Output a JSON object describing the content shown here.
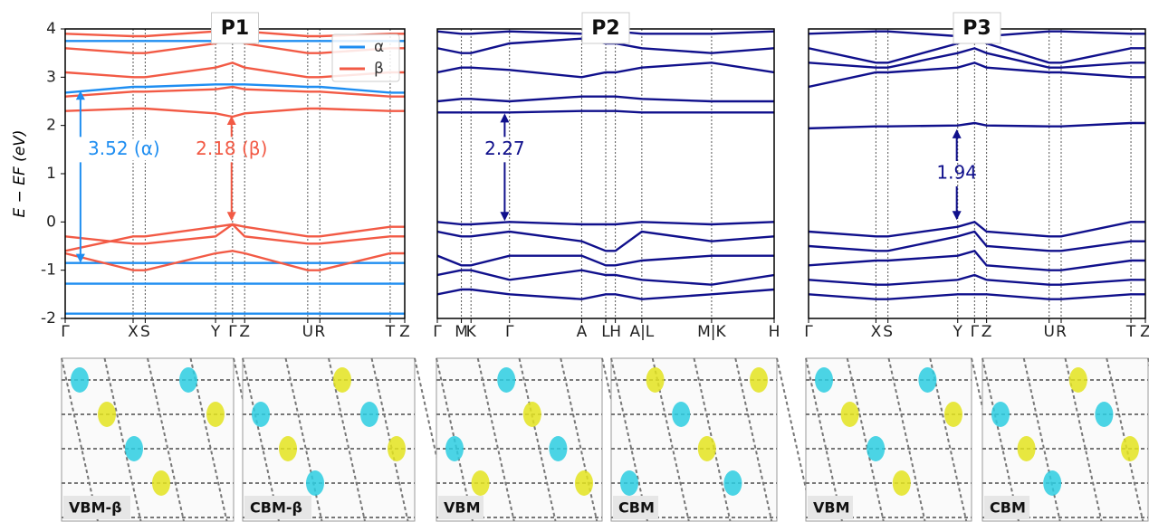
{
  "chart_data": [
    {
      "type": "line",
      "title": "P1",
      "ylabel": "E − EF (eV)",
      "xlim": [
        0,
        1.4
      ],
      "ylim": [
        -2,
        4
      ],
      "yticks": [
        -2,
        -1,
        0,
        1,
        2,
        3,
        4
      ],
      "xticks": [
        {
          "value": 0,
          "label": "Γ"
        },
        {
          "value": 0.28,
          "label": "X"
        },
        {
          "value": 0.33,
          "label": "S"
        },
        {
          "value": 0.62,
          "label": "Y"
        },
        {
          "value": 0.69,
          "label": "Γ"
        },
        {
          "value": 0.74,
          "label": "Z"
        },
        {
          "value": 1.0,
          "label": "U"
        },
        {
          "value": 1.05,
          "label": "R"
        },
        {
          "value": 1.34,
          "label": "T"
        },
        {
          "value": 1.4,
          "label": "Z"
        }
      ],
      "x": [
        0,
        0.28,
        0.33,
        0.62,
        0.69,
        0.74,
        1.0,
        1.05,
        1.34,
        1.4
      ],
      "legend": "upper right",
      "series": [
        {
          "name": "α",
          "color": "#1f8ef1",
          "bands": [
            [
              -0.85,
              -0.85,
              -0.85,
              -0.85,
              -0.85,
              -0.85,
              -0.85,
              -0.85,
              -0.85,
              -0.85
            ],
            [
              -1.28,
              -1.28,
              -1.28,
              -1.28,
              -1.28,
              -1.28,
              -1.28,
              -1.28,
              -1.28,
              -1.28
            ],
            [
              -1.9,
              -1.9,
              -1.9,
              -1.9,
              -1.9,
              -1.9,
              -1.9,
              -1.9,
              -1.9,
              -1.9
            ],
            [
              2.68,
              2.8,
              2.8,
              2.85,
              2.85,
              2.85,
              2.8,
              2.8,
              2.68,
              2.68
            ],
            [
              3.75,
              3.75,
              3.75,
              3.75,
              3.75,
              3.75,
              3.75,
              3.75,
              3.75,
              3.75
            ]
          ]
        },
        {
          "name": "β",
          "color": "#f25a45",
          "bands": [
            [
              -0.6,
              -0.3,
              -0.3,
              -0.1,
              -0.05,
              -0.1,
              -0.3,
              -0.3,
              -0.1,
              -0.1
            ],
            [
              -0.3,
              -0.45,
              -0.45,
              -0.3,
              -0.05,
              -0.3,
              -0.45,
              -0.45,
              -0.3,
              -0.3
            ],
            [
              -0.65,
              -1.0,
              -1.0,
              -0.65,
              -0.6,
              -0.65,
              -1.0,
              -1.0,
              -0.65,
              -0.65
            ],
            [
              2.3,
              2.35,
              2.35,
              2.25,
              2.18,
              2.25,
              2.35,
              2.35,
              2.3,
              2.3
            ],
            [
              2.6,
              2.7,
              2.7,
              2.75,
              2.8,
              2.75,
              2.7,
              2.7,
              2.6,
              2.6
            ],
            [
              3.1,
              3.0,
              3.0,
              3.2,
              3.3,
              3.2,
              3.0,
              3.0,
              3.1,
              3.1
            ],
            [
              3.6,
              3.5,
              3.5,
              3.7,
              3.8,
              3.7,
              3.5,
              3.5,
              3.6,
              3.6
            ],
            [
              3.9,
              3.85,
              3.85,
              3.95,
              3.95,
              3.95,
              3.85,
              3.85,
              3.9,
              3.9
            ]
          ]
        }
      ],
      "annotations": [
        {
          "text": "3.52 (α)",
          "color": "#1f8ef1"
        },
        {
          "text": "2.18 (β)",
          "color": "#f25a45"
        }
      ]
    },
    {
      "type": "line",
      "title": "P2",
      "xlim": [
        0,
        1.4
      ],
      "ylim": [
        -2,
        4
      ],
      "xticks": [
        {
          "value": 0,
          "label": "Γ"
        },
        {
          "value": 0.1,
          "label": "M"
        },
        {
          "value": 0.14,
          "label": "K"
        },
        {
          "value": 0.3,
          "label": "Γ"
        },
        {
          "value": 0.6,
          "label": "A"
        },
        {
          "value": 0.7,
          "label": "L"
        },
        {
          "value": 0.74,
          "label": "H"
        },
        {
          "value": 0.85,
          "label": "A|L"
        },
        {
          "value": 1.14,
          "label": "M|K"
        },
        {
          "value": 1.4,
          "label": "H"
        }
      ],
      "x": [
        0,
        0.1,
        0.14,
        0.3,
        0.6,
        0.7,
        0.74,
        0.85,
        1.14,
        1.4
      ],
      "series": [
        {
          "color": "#10108c",
          "bands": [
            [
              0,
              -0.05,
              -0.05,
              0,
              -0.05,
              -0.05,
              -0.05,
              0,
              -0.05,
              0
            ],
            [
              -0.2,
              -0.3,
              -0.3,
              -0.2,
              -0.4,
              -0.6,
              -0.6,
              -0.2,
              -0.4,
              -0.3
            ],
            [
              -0.7,
              -0.9,
              -0.9,
              -0.7,
              -0.7,
              -0.9,
              -0.9,
              -0.8,
              -0.7,
              -0.7
            ],
            [
              -1.1,
              -1.0,
              -1.0,
              -1.2,
              -1.0,
              -1.1,
              -1.1,
              -1.2,
              -1.3,
              -1.1
            ],
            [
              -1.5,
              -1.4,
              -1.4,
              -1.5,
              -1.6,
              -1.5,
              -1.5,
              -1.6,
              -1.5,
              -1.4
            ],
            [
              2.27,
              2.27,
              2.27,
              2.27,
              2.3,
              2.3,
              2.3,
              2.27,
              2.27,
              2.27
            ],
            [
              2.5,
              2.55,
              2.55,
              2.5,
              2.6,
              2.6,
              2.6,
              2.55,
              2.5,
              2.5
            ],
            [
              3.1,
              3.2,
              3.2,
              3.15,
              3.0,
              3.1,
              3.1,
              3.2,
              3.3,
              3.1
            ],
            [
              3.6,
              3.5,
              3.5,
              3.7,
              3.8,
              3.7,
              3.7,
              3.6,
              3.5,
              3.6
            ],
            [
              3.95,
              3.9,
              3.9,
              3.95,
              3.9,
              3.95,
              3.95,
              3.9,
              3.9,
              3.95
            ]
          ]
        }
      ],
      "annotations": [
        {
          "text": "2.27",
          "color": "#10108c"
        }
      ]
    },
    {
      "type": "line",
      "title": "P3",
      "xlim": [
        0,
        1.4
      ],
      "ylim": [
        -2,
        4
      ],
      "xticks": [
        {
          "value": 0,
          "label": "Γ"
        },
        {
          "value": 0.28,
          "label": "X"
        },
        {
          "value": 0.33,
          "label": "S"
        },
        {
          "value": 0.62,
          "label": "Y"
        },
        {
          "value": 0.69,
          "label": "Γ"
        },
        {
          "value": 0.74,
          "label": "Z"
        },
        {
          "value": 1.0,
          "label": "U"
        },
        {
          "value": 1.05,
          "label": "R"
        },
        {
          "value": 1.34,
          "label": "T"
        },
        {
          "value": 1.4,
          "label": "Z"
        }
      ],
      "x": [
        0,
        0.28,
        0.33,
        0.62,
        0.69,
        0.74,
        1.0,
        1.05,
        1.34,
        1.4
      ],
      "series": [
        {
          "color": "#10108c",
          "bands": [
            [
              -0.2,
              -0.3,
              -0.3,
              -0.1,
              0,
              -0.2,
              -0.3,
              -0.3,
              0,
              0
            ],
            [
              -0.5,
              -0.6,
              -0.6,
              -0.3,
              -0.2,
              -0.5,
              -0.6,
              -0.6,
              -0.4,
              -0.4
            ],
            [
              -0.9,
              -0.8,
              -0.8,
              -0.7,
              -0.6,
              -0.9,
              -1.0,
              -1.0,
              -0.8,
              -0.8
            ],
            [
              -1.2,
              -1.3,
              -1.3,
              -1.2,
              -1.1,
              -1.2,
              -1.3,
              -1.3,
              -1.2,
              -1.2
            ],
            [
              -1.5,
              -1.6,
              -1.6,
              -1.5,
              -1.5,
              -1.5,
              -1.6,
              -1.6,
              -1.5,
              -1.5
            ],
            [
              1.94,
              1.98,
              1.98,
              2.0,
              2.05,
              2.0,
              1.98,
              1.98,
              2.05,
              2.05
            ],
            [
              2.8,
              3.1,
              3.1,
              3.2,
              3.3,
              3.2,
              3.1,
              3.1,
              3.0,
              3.0
            ],
            [
              3.3,
              3.2,
              3.2,
              3.5,
              3.6,
              3.5,
              3.2,
              3.2,
              3.3,
              3.3
            ],
            [
              3.6,
              3.3,
              3.3,
              3.7,
              3.8,
              3.7,
              3.3,
              3.3,
              3.6,
              3.6
            ],
            [
              3.9,
              3.95,
              3.95,
              3.85,
              3.9,
              3.85,
              3.95,
              3.95,
              3.9,
              3.9
            ]
          ]
        }
      ],
      "annotations": [
        {
          "text": "1.94",
          "color": "#10108c"
        }
      ]
    }
  ],
  "orbitals": [
    "VBM-β",
    "CBM-β",
    "VBM",
    "CBM",
    "VBM",
    "CBM"
  ]
}
